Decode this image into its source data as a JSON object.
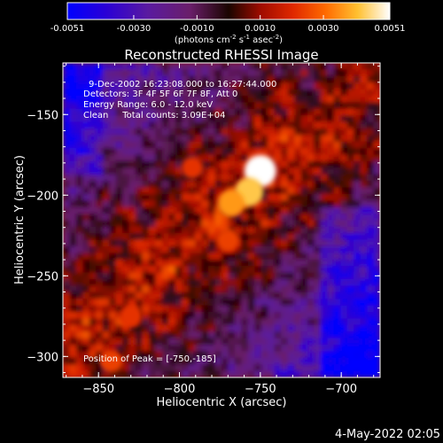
{
  "chart_data": {
    "type": "heatmap",
    "title": "Reconstructed RHESSI Image",
    "xlabel": "Heliocentric X (arcsec)",
    "ylabel": "Heliocentric Y (arcsec)",
    "xlim": [
      -872,
      -676
    ],
    "ylim": [
      -313,
      -118
    ],
    "x_ticks": [
      -850,
      -800,
      -750,
      -700
    ],
    "y_ticks": [
      -150,
      -200,
      -250,
      -300
    ],
    "colorbar": {
      "ticks": [
        -0.0051,
        -0.003,
        -0.001,
        0.001,
        0.003,
        0.0051
      ],
      "tick_labels": [
        "-0.0051",
        "-0.0030",
        "-0.0010",
        "0.0010",
        "0.0030",
        "0.0051"
      ],
      "range": [
        -0.0051,
        0.0051
      ],
      "unit_label_parts": [
        "(photons cm",
        "-2",
        " s",
        "-1",
        " asec",
        "-2",
        ")"
      ]
    },
    "peak": {
      "x": -750,
      "y": -185
    },
    "hot_spots": [
      {
        "x": -750,
        "y": -185,
        "value": 0.0051
      },
      {
        "x": -757,
        "y": -198,
        "value": 0.0042
      },
      {
        "x": -768,
        "y": -205,
        "value": 0.0036
      },
      {
        "x": -792,
        "y": -183,
        "value": 0.0022
      },
      {
        "x": -770,
        "y": -228,
        "value": 0.0024
      },
      {
        "x": -830,
        "y": -275,
        "value": 0.0022
      },
      {
        "x": -842,
        "y": -303,
        "value": 0.0024
      }
    ]
  },
  "annotations": [
    "9-Dec-2002 16:23:08.000 to 16:27:44.000",
    "Detectors: 3F 4F 5F 6F 7F 8F, Att 0",
    "Energy Range: 6.0 - 12.0 keV",
    "Clean     Total counts: 3.09E+04"
  ],
  "peak_label": "Position of Peak = [-750,-185]",
  "timestamp": "4-May-2022 02:05"
}
